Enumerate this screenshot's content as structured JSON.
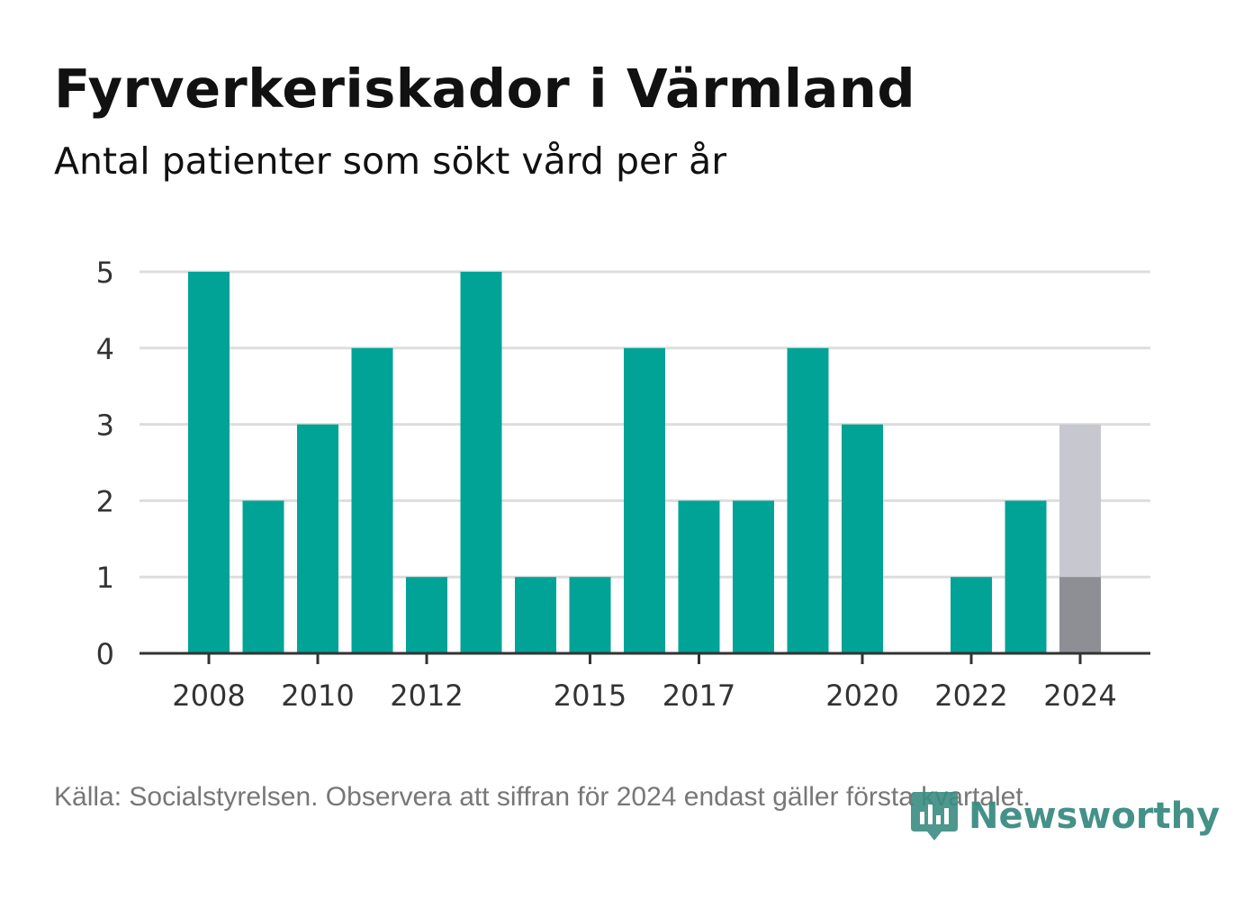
{
  "title": "Fyrverkeriskador i Värmland",
  "subtitle": "Antal patienter som sökt vård per år",
  "footer": "Källa: Socialstyrelsen. Observera att siffran för 2024 endast gäller första kvartalet.",
  "brand": {
    "name": "Newsworthy",
    "icon": "newsworthy-logo-icon",
    "color": "#3a8c82"
  },
  "colors": {
    "bar": "#00a396",
    "bar_partial": "#8e8f94",
    "bar_previous": "#c7c7cf",
    "grid": "#dddddd",
    "axis": "#333333"
  },
  "chart_data": {
    "type": "bar",
    "categories": [
      "2008",
      "2009",
      "2010",
      "2011",
      "2012",
      "2013",
      "2014",
      "2015",
      "2016",
      "2017",
      "2018",
      "2019",
      "2020",
      "2021",
      "2022",
      "2023",
      "2024"
    ],
    "x_tick_labels": [
      "2008",
      "2010",
      "2012",
      "2015",
      "2017",
      "2020",
      "2022",
      "2024"
    ],
    "values": [
      5,
      2,
      3,
      4,
      1,
      5,
      1,
      1,
      4,
      2,
      2,
      4,
      3,
      0,
      1,
      2,
      1
    ],
    "highlight": {
      "category": "2024",
      "value": 1,
      "reference_value": 3
    },
    "ylim": [
      0,
      5
    ],
    "y_ticks": [
      0,
      1,
      2,
      3,
      4,
      5
    ],
    "grid": true,
    "legend": "none"
  }
}
